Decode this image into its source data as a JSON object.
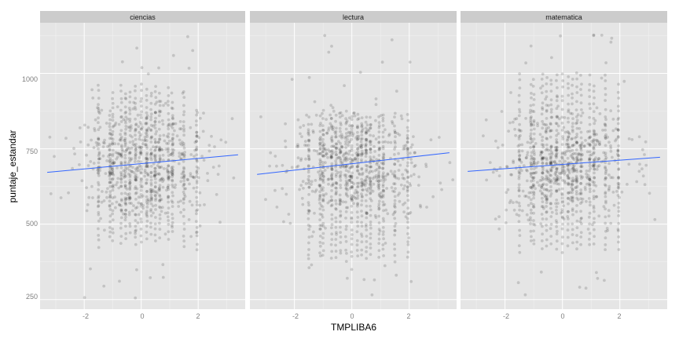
{
  "chart_data": {
    "type": "scatter",
    "facet_titles": [
      "ciencias",
      "lectura",
      "matematica"
    ],
    "xlabel": "TMPLIBA6",
    "ylabel": "puntaje_estandar",
    "xlim": [
      -3.55,
      3.65
    ],
    "ylim": [
      218,
      1168
    ],
    "x_ticks": [
      -2,
      0,
      2
    ],
    "y_ticks": [
      250,
      500,
      750,
      1000
    ],
    "x_tick_labels": [
      "-2",
      "0",
      "2"
    ],
    "y_tick_labels": [
      "250",
      "500",
      "750",
      "1000"
    ],
    "panel_background": "#e5e5e5",
    "strip_background": "#cccccc",
    "grid_color": "#ffffff",
    "point_color": "#000000",
    "point_alpha": 0.15,
    "smooth_color": "#3366ff",
    "column_x": [
      -1.5,
      -1.1,
      -1.0,
      -0.7,
      -0.55,
      -0.4,
      -0.2,
      0.0,
      0.2,
      0.35,
      0.5,
      0.65,
      0.95,
      1.1,
      1.5,
      1.95
    ],
    "facets": [
      {
        "name": "ciencias",
        "trend": {
          "x": [
            -3.3,
            3.4
          ],
          "y": [
            672,
            730
          ]
        },
        "column_ranges": [
          [
            425,
            960
          ],
          [
            460,
            880
          ],
          [
            450,
            940
          ],
          [
            440,
            960
          ],
          [
            455,
            930
          ],
          [
            470,
            940
          ],
          [
            430,
            960
          ],
          [
            440,
            960
          ],
          [
            455,
            950
          ],
          [
            470,
            940
          ],
          [
            440,
            960
          ],
          [
            460,
            930
          ],
          [
            455,
            950
          ],
          [
            470,
            900
          ],
          [
            420,
            940
          ],
          [
            420,
            880
          ]
        ]
      },
      {
        "name": "lectura",
        "trend": {
          "x": [
            -3.3,
            3.4
          ],
          "y": [
            665,
            737
          ]
        },
        "column_ranges": [
          [
            360,
            855
          ],
          [
            390,
            840
          ],
          [
            400,
            850
          ],
          [
            390,
            850
          ],
          [
            395,
            860
          ],
          [
            400,
            860
          ],
          [
            380,
            870
          ],
          [
            390,
            860
          ],
          [
            395,
            860
          ],
          [
            400,
            850
          ],
          [
            390,
            860
          ],
          [
            400,
            850
          ],
          [
            395,
            860
          ],
          [
            400,
            840
          ],
          [
            380,
            870
          ],
          [
            390,
            860
          ]
        ]
      },
      {
        "name": "matematica",
        "trend": {
          "x": [
            -3.3,
            3.4
          ],
          "y": [
            675,
            722
          ]
        },
        "column_ranges": [
          [
            410,
            1000
          ],
          [
            440,
            960
          ],
          [
            430,
            980
          ],
          [
            420,
            1000
          ],
          [
            430,
            990
          ],
          [
            440,
            980
          ],
          [
            420,
            1000
          ],
          [
            410,
            1000
          ],
          [
            430,
            990
          ],
          [
            440,
            980
          ],
          [
            420,
            1000
          ],
          [
            430,
            990
          ],
          [
            430,
            990
          ],
          [
            440,
            960
          ],
          [
            410,
            1000
          ],
          [
            420,
            960
          ]
        ]
      }
    ]
  }
}
